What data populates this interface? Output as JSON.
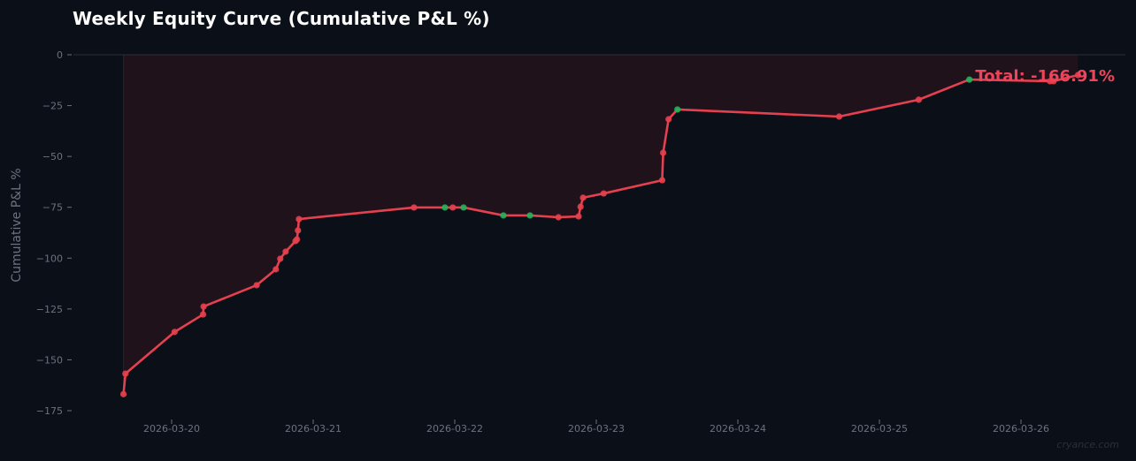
{
  "chart_data": {
    "type": "line",
    "title": "Weekly Equity Curve (Cumulative P&L %)",
    "xlabel": "",
    "ylabel": "Cumulative P&L %",
    "ylim": [
      -175,
      0
    ],
    "xlim_days_from_2026_03_20": [
      -0.69,
      6.74
    ],
    "x_tick_labels": [
      "2026-03-20",
      "2026-03-21",
      "2026-03-22",
      "2026-03-23",
      "2026-03-24",
      "2026-03-25",
      "2026-03-26"
    ],
    "y_ticks": [
      0,
      -25,
      -50,
      -75,
      -100,
      -125,
      -150,
      -175
    ],
    "grid": false,
    "legend": null,
    "annotation": "Total: -166.91%",
    "line_color": "#e5404f",
    "win_marker_color": "#22b45a",
    "loss_marker_color": "#e5404f",
    "fill_color": "#1f121b",
    "series": [
      {
        "name": "Cumulative P&L %",
        "points": [
          {
            "x": "2026-03-19 15:50",
            "y": -166.9,
            "win": false
          },
          {
            "x": "2026-03-19 16:10",
            "y": -156.8,
            "win": false
          },
          {
            "x": "2026-03-20 00:30",
            "y": -136.3,
            "win": false
          },
          {
            "x": "2026-03-20 05:20",
            "y": -127.7,
            "win": false
          },
          {
            "x": "2026-03-20 05:25",
            "y": -123.8,
            "win": false
          },
          {
            "x": "2026-03-20 14:25",
            "y": -113.3,
            "win": false
          },
          {
            "x": "2026-03-20 17:40",
            "y": -105.5,
            "win": false
          },
          {
            "x": "2026-03-20 18:25",
            "y": -100.3,
            "win": false
          },
          {
            "x": "2026-03-20 19:20",
            "y": -96.8,
            "win": false
          },
          {
            "x": "2026-03-20 21:00",
            "y": -91.6,
            "win": false
          },
          {
            "x": "2026-03-20 21:15",
            "y": -90.8,
            "win": false
          },
          {
            "x": "2026-03-20 21:25",
            "y": -86.4,
            "win": false
          },
          {
            "x": "2026-03-20 21:35",
            "y": -80.8,
            "win": false
          },
          {
            "x": "2026-03-21 17:05",
            "y": -75.1,
            "win": false
          },
          {
            "x": "2026-03-21 22:20",
            "y": -75.1,
            "win": true
          },
          {
            "x": "2026-03-21 23:40",
            "y": -75.1,
            "win": false
          },
          {
            "x": "2026-03-22 01:30",
            "y": -75.1,
            "win": true
          },
          {
            "x": "2026-03-22 08:15",
            "y": -79.0,
            "win": true
          },
          {
            "x": "2026-03-22 12:45",
            "y": -79.0,
            "win": true
          },
          {
            "x": "2026-03-22 17:35",
            "y": -79.9,
            "win": false
          },
          {
            "x": "2026-03-22 21:00",
            "y": -79.5,
            "win": false
          },
          {
            "x": "2026-03-22 21:20",
            "y": -74.7,
            "win": false
          },
          {
            "x": "2026-03-22 21:45",
            "y": -70.3,
            "win": false
          },
          {
            "x": "2026-03-23 01:15",
            "y": -68.2,
            "win": false
          },
          {
            "x": "2026-03-23 11:10",
            "y": -61.7,
            "win": false
          },
          {
            "x": "2026-03-23 11:20",
            "y": -48.2,
            "win": false
          },
          {
            "x": "2026-03-23 12:15",
            "y": -31.7,
            "win": false
          },
          {
            "x": "2026-03-23 13:45",
            "y": -26.9,
            "win": true
          },
          {
            "x": "2026-03-24 17:10",
            "y": -30.4,
            "win": false
          },
          {
            "x": "2026-03-25 06:40",
            "y": -22.1,
            "win": false
          },
          {
            "x": "2026-03-25 15:15",
            "y": -12.2,
            "win": true
          },
          {
            "x": "2026-03-26 04:55",
            "y": -13.0,
            "win": false
          },
          {
            "x": "2026-03-26 05:30",
            "y": -13.0,
            "win": false
          },
          {
            "x": "2026-03-26 09:40",
            "y": -10.0,
            "win": false
          }
        ]
      }
    ]
  },
  "watermark": "cryance.com"
}
